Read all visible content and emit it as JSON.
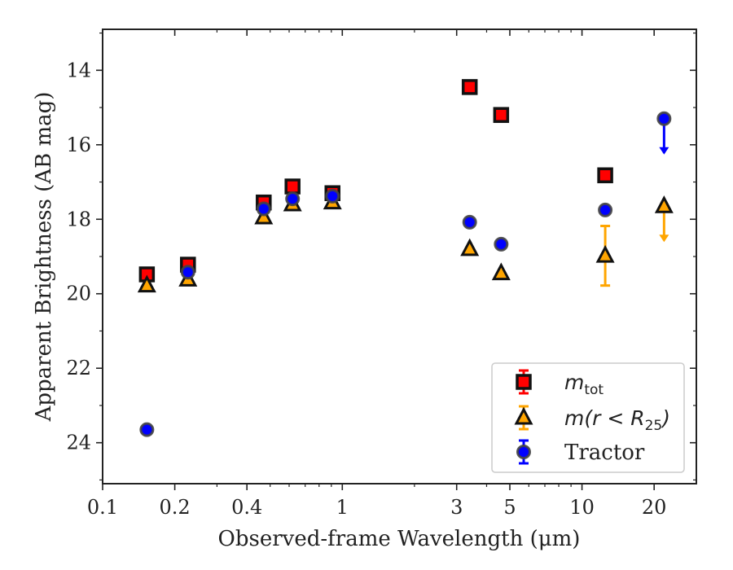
{
  "chart_data": {
    "type": "scatter",
    "xlabel": "Observed-frame Wavelength (μm)",
    "ylabel": "Apparent Brightness (AB mag)",
    "x_scale": "log",
    "xlim": [
      0.1,
      30
    ],
    "ylim": [
      25.1,
      12.9
    ],
    "y_inverted": true,
    "x_ticks": [
      0.1,
      0.2,
      0.4,
      1,
      3,
      5,
      10,
      20
    ],
    "x_tick_labels": [
      "0.1",
      "0.2",
      "0.4",
      "1",
      "3",
      "5",
      "10",
      "20"
    ],
    "y_ticks": [
      14,
      16,
      18,
      20,
      22,
      24
    ],
    "y_tick_labels": [
      "14",
      "16",
      "18",
      "20",
      "22",
      "24"
    ],
    "grid": false,
    "legend_position": "bottom-right",
    "series": [
      {
        "name": "m_tot",
        "legend_label": "m",
        "legend_subscript": "tot",
        "marker": "square",
        "color": "#ff0000",
        "edge_color": "#111111",
        "points": [
          {
            "x": 0.153,
            "y": 19.48
          },
          {
            "x": 0.227,
            "y": 19.22
          },
          {
            "x": 0.47,
            "y": 17.55
          },
          {
            "x": 0.62,
            "y": 17.12
          },
          {
            "x": 0.91,
            "y": 17.3
          },
          {
            "x": 3.4,
            "y": 14.45
          },
          {
            "x": 4.6,
            "y": 15.2
          },
          {
            "x": 12.5,
            "y": 16.82
          }
        ]
      },
      {
        "name": "m(r < R_25)",
        "legend_label": "m(r < R",
        "legend_subscript": "25",
        "legend_suffix": ")",
        "marker": "triangle",
        "color": "#ffa500",
        "edge_color": "#111111",
        "points": [
          {
            "x": 0.153,
            "y": 19.78
          },
          {
            "x": 0.227,
            "y": 19.62
          },
          {
            "x": 0.47,
            "y": 17.95
          },
          {
            "x": 0.62,
            "y": 17.6
          },
          {
            "x": 0.91,
            "y": 17.55
          },
          {
            "x": 3.4,
            "y": 18.8
          },
          {
            "x": 4.6,
            "y": 19.45
          },
          {
            "x": 12.5,
            "y": 18.98,
            "err": 0.8
          },
          {
            "x": 22.0,
            "y": 17.65,
            "upper_limit": true
          }
        ]
      },
      {
        "name": "Tractor",
        "legend_label": "Tractor",
        "marker": "circle",
        "color": "#0000ff",
        "edge_color": "#444444",
        "points": [
          {
            "x": 0.153,
            "y": 23.65
          },
          {
            "x": 0.227,
            "y": 19.42
          },
          {
            "x": 0.47,
            "y": 17.72
          },
          {
            "x": 0.62,
            "y": 17.45
          },
          {
            "x": 0.91,
            "y": 17.38
          },
          {
            "x": 3.4,
            "y": 18.08
          },
          {
            "x": 4.6,
            "y": 18.67
          },
          {
            "x": 12.5,
            "y": 17.75
          },
          {
            "x": 22.0,
            "y": 15.3,
            "upper_limit": true
          }
        ]
      }
    ]
  }
}
